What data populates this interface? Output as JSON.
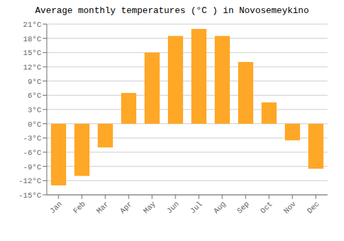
{
  "chart_data": {
    "type": "bar",
    "title": "Average monthly temperatures (°C ) in Novosemeykino",
    "categories": [
      "Jan",
      "Feb",
      "Mar",
      "Apr",
      "May",
      "Jun",
      "Jul",
      "Aug",
      "Sep",
      "Oct",
      "Nov",
      "Dec"
    ],
    "values": [
      -13,
      -11,
      -5,
      6.5,
      15,
      18.5,
      20,
      18.5,
      13,
      4.5,
      -3.5,
      -9.5
    ],
    "color": "#FFA726",
    "ylim": [
      -15,
      21
    ],
    "yticks": [
      {
        "value": -15,
        "label": "-15°C"
      },
      {
        "value": -12,
        "label": "-12°C"
      },
      {
        "value": -9,
        "label": "-9°C"
      },
      {
        "value": -6,
        "label": "-6°C"
      },
      {
        "value": -3,
        "label": "-3°C"
      },
      {
        "value": 0,
        "label": "0°C"
      },
      {
        "value": 3,
        "label": "3°C"
      },
      {
        "value": 6,
        "label": "6°C"
      },
      {
        "value": 9,
        "label": "9°C"
      },
      {
        "value": 12,
        "label": "12°C"
      },
      {
        "value": 15,
        "label": "15°C"
      },
      {
        "value": 18,
        "label": "18°C"
      },
      {
        "value": 21,
        "label": "21°C"
      }
    ],
    "grid": true
  }
}
